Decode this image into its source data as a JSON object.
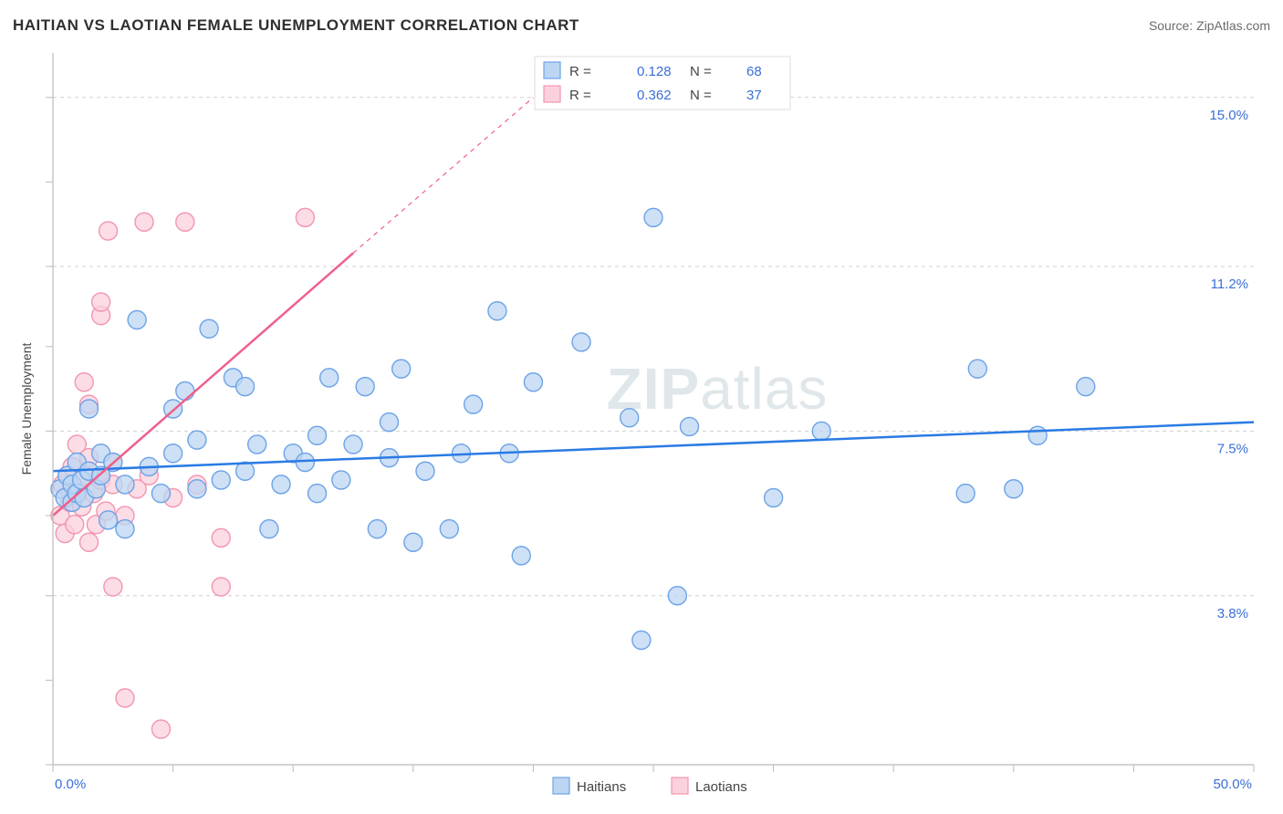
{
  "title": "HAITIAN VS LAOTIAN FEMALE UNEMPLOYMENT CORRELATION CHART",
  "source_label": "Source: ZipAtlas.com",
  "y_axis_title": "Female Unemployment",
  "watermark": {
    "bold": "ZIP",
    "light": "atlas"
  },
  "chart": {
    "type": "scatter",
    "background_color": "#ffffff",
    "grid_color": "#cfcfcf",
    "axis_color": "#bbbbbb",
    "x": {
      "min": 0.0,
      "max": 50.0,
      "label_min": "0.0%",
      "label_max": "50.0%",
      "n_ticks": 10
    },
    "y": {
      "min": 0.0,
      "max": 16.0,
      "gridlines": [
        3.8,
        7.5,
        11.2,
        15.0
      ],
      "gridline_labels": [
        "3.8%",
        "7.5%",
        "11.2%",
        "15.0%"
      ]
    },
    "trend_lines": {
      "haitians": {
        "color": "#2a7be4",
        "width": 2.5,
        "y_at_x0": 6.6,
        "y_at_xmax": 7.7
      },
      "laotians": {
        "color": "#ef5f8a",
        "width": 2.5,
        "x0": 0.0,
        "y0": 5.6,
        "x1_solid": 12.5,
        "y1_solid": 11.5,
        "x1_dash": 20.0,
        "y1_dash": 15.0
      }
    },
    "marker_radius": 10,
    "marker_stroke_width": 1.4,
    "series": {
      "haitians": {
        "label": "Haitians",
        "fill": "#bcd5f2",
        "stroke": "#6da3e8",
        "R": "0.128",
        "N": "68",
        "points": [
          [
            0.3,
            6.2
          ],
          [
            0.5,
            6.0
          ],
          [
            0.6,
            6.5
          ],
          [
            0.8,
            5.9
          ],
          [
            0.8,
            6.3
          ],
          [
            1.0,
            6.1
          ],
          [
            1.0,
            6.8
          ],
          [
            1.2,
            6.4
          ],
          [
            1.3,
            6.0
          ],
          [
            1.5,
            6.6
          ],
          [
            1.5,
            8.0
          ],
          [
            1.8,
            6.2
          ],
          [
            2.0,
            6.5
          ],
          [
            2.0,
            7.0
          ],
          [
            2.3,
            5.5
          ],
          [
            2.5,
            6.8
          ],
          [
            3.0,
            6.3
          ],
          [
            3.0,
            5.3
          ],
          [
            3.5,
            10.0
          ],
          [
            4.0,
            6.7
          ],
          [
            4.5,
            6.1
          ],
          [
            5.0,
            7.0
          ],
          [
            5.0,
            8.0
          ],
          [
            5.5,
            8.4
          ],
          [
            6.0,
            7.3
          ],
          [
            6.0,
            6.2
          ],
          [
            6.5,
            9.8
          ],
          [
            7.0,
            6.4
          ],
          [
            7.5,
            8.7
          ],
          [
            8.0,
            6.6
          ],
          [
            8.0,
            8.5
          ],
          [
            8.5,
            7.2
          ],
          [
            9.0,
            5.3
          ],
          [
            9.5,
            6.3
          ],
          [
            10.0,
            7.0
          ],
          [
            10.5,
            6.8
          ],
          [
            11.0,
            6.1
          ],
          [
            11.0,
            7.4
          ],
          [
            11.5,
            8.7
          ],
          [
            12.0,
            6.4
          ],
          [
            12.5,
            7.2
          ],
          [
            13.0,
            8.5
          ],
          [
            13.5,
            5.3
          ],
          [
            14.0,
            6.9
          ],
          [
            14.0,
            7.7
          ],
          [
            14.5,
            8.9
          ],
          [
            15.0,
            5.0
          ],
          [
            15.5,
            6.6
          ],
          [
            16.5,
            5.3
          ],
          [
            17.0,
            7.0
          ],
          [
            17.5,
            8.1
          ],
          [
            18.5,
            10.2
          ],
          [
            19.0,
            7.0
          ],
          [
            19.5,
            4.7
          ],
          [
            20.0,
            8.6
          ],
          [
            22.0,
            9.5
          ],
          [
            24.0,
            7.8
          ],
          [
            24.5,
            2.8
          ],
          [
            25.0,
            12.3
          ],
          [
            26.0,
            3.8
          ],
          [
            26.5,
            7.6
          ],
          [
            30.0,
            6.0
          ],
          [
            32.0,
            7.5
          ],
          [
            38.0,
            6.1
          ],
          [
            38.5,
            8.9
          ],
          [
            40.0,
            6.2
          ],
          [
            41.0,
            7.4
          ],
          [
            43.0,
            8.5
          ]
        ]
      },
      "laotians": {
        "label": "Laotians",
        "fill": "#fbd1dc",
        "stroke": "#f296b0",
        "R": "0.362",
        "N": "37",
        "points": [
          [
            0.3,
            5.6
          ],
          [
            0.4,
            6.3
          ],
          [
            0.5,
            5.2
          ],
          [
            0.6,
            6.5
          ],
          [
            0.7,
            5.9
          ],
          [
            0.8,
            6.7
          ],
          [
            0.9,
            5.4
          ],
          [
            1.0,
            6.2
          ],
          [
            1.0,
            7.2
          ],
          [
            1.2,
            5.8
          ],
          [
            1.3,
            6.5
          ],
          [
            1.3,
            8.6
          ],
          [
            1.5,
            5.0
          ],
          [
            1.5,
            6.9
          ],
          [
            1.5,
            8.1
          ],
          [
            1.7,
            6.1
          ],
          [
            1.8,
            5.4
          ],
          [
            2.0,
            6.4
          ],
          [
            2.0,
            10.1
          ],
          [
            2.0,
            10.4
          ],
          [
            2.2,
            5.7
          ],
          [
            2.3,
            12.0
          ],
          [
            2.5,
            4.0
          ],
          [
            2.5,
            6.3
          ],
          [
            2.5,
            6.8
          ],
          [
            3.0,
            1.5
          ],
          [
            3.0,
            5.6
          ],
          [
            3.5,
            6.2
          ],
          [
            3.8,
            12.2
          ],
          [
            4.0,
            6.5
          ],
          [
            4.5,
            0.8
          ],
          [
            5.0,
            6.0
          ],
          [
            5.5,
            12.2
          ],
          [
            6.0,
            6.3
          ],
          [
            7.0,
            4.0
          ],
          [
            7.0,
            5.1
          ],
          [
            10.5,
            12.3
          ]
        ]
      }
    },
    "stats_legend": {
      "R_label": "R  =",
      "N_label": "N  ="
    },
    "bottom_legend": [
      {
        "key": "haitians",
        "label": "Haitians"
      },
      {
        "key": "laotians",
        "label": "Laotians"
      }
    ]
  }
}
